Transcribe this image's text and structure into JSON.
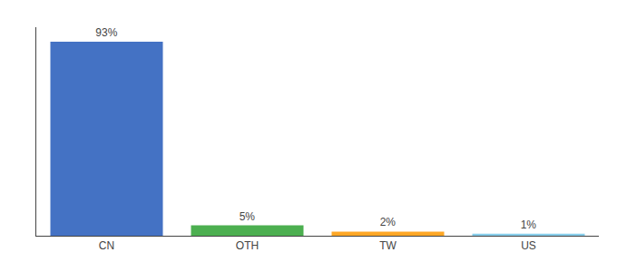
{
  "chart_data": {
    "type": "bar",
    "categories": [
      "CN",
      "OTH",
      "TW",
      "US"
    ],
    "values": [
      93,
      5,
      2,
      1
    ],
    "value_labels": [
      "93%",
      "5%",
      "2%",
      "1%"
    ],
    "data_labels": true,
    "colors": [
      "#4472c4",
      "#4caf50",
      "#ffa726",
      "#87ceeb"
    ],
    "ylim": [
      0,
      100
    ],
    "grid": false,
    "tick_labels": "x"
  }
}
